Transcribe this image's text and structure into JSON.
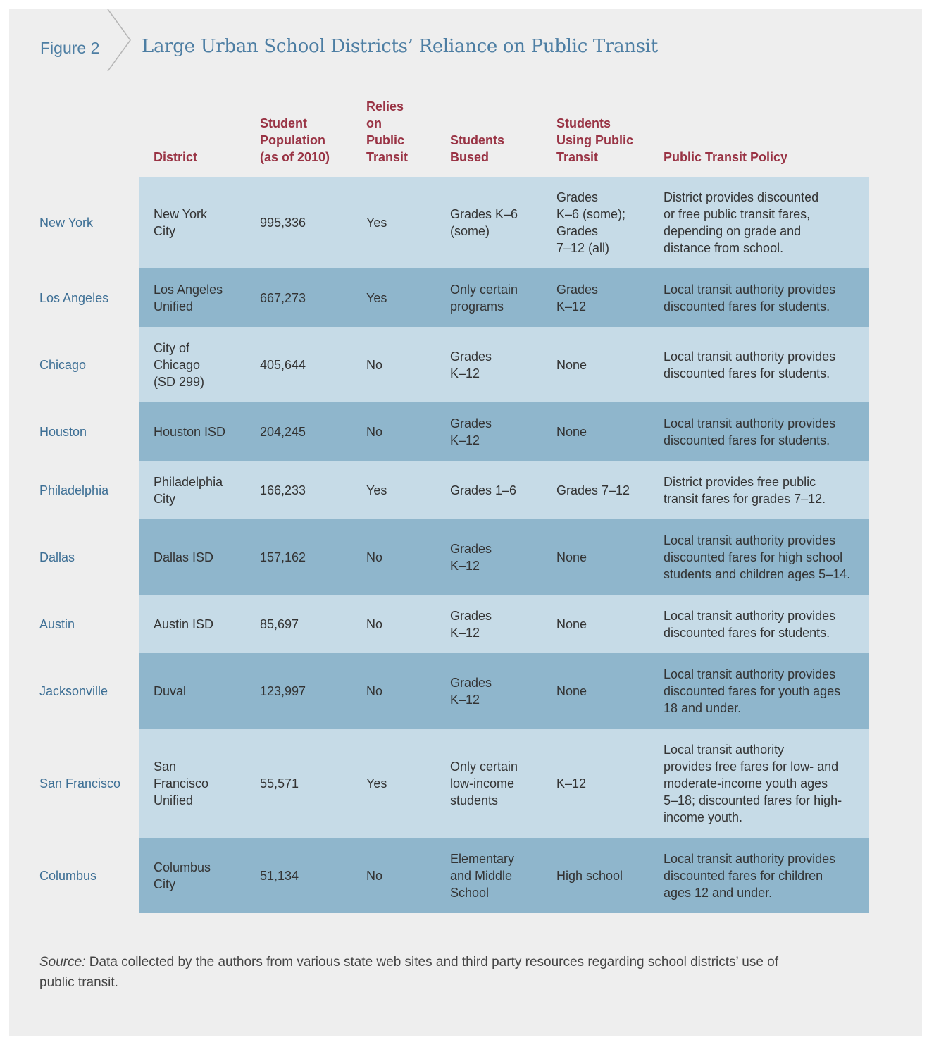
{
  "figure": {
    "label": "Figure 2",
    "title": "Large Urban School Districts’ Reliance on Public Transit"
  },
  "columns": {
    "district": "District",
    "population": "Student\nPopulation\n(as of 2010)",
    "relies": "Relies\non\nPublic\nTransit",
    "bused": "Students\nBused",
    "using": "Students\nUsing Public\nTransit",
    "policy": "Public Transit Policy"
  },
  "rows": [
    {
      "city": "New York",
      "district": "New York\nCity",
      "population": "995,336",
      "relies": "Yes",
      "bused": "Grades K–6\n(some)",
      "using": "Grades\nK–6 (some);\nGrades\n7–12 (all)",
      "policy": "District provides discounted\nor free public transit fares,\ndepending on grade and\ndistance from school."
    },
    {
      "city": "Los Angeles",
      "district": "Los Angeles\nUnified",
      "population": "667,273",
      "relies": "Yes",
      "bused": "Only certain\nprograms",
      "using": "Grades\nK–12",
      "policy": "Local transit authority provides\ndiscounted fares for students."
    },
    {
      "city": "Chicago",
      "district": "City of\nChicago\n(SD 299)",
      "population": "405,644",
      "relies": "No",
      "bused": "Grades\nK–12",
      "using": "None",
      "policy": "Local transit authority provides\ndiscounted fares for students."
    },
    {
      "city": "Houston",
      "district": "Houston ISD",
      "population": "204,245",
      "relies": "No",
      "bused": "Grades\nK–12",
      "using": "None",
      "policy": "Local transit authority provides\ndiscounted fares for students."
    },
    {
      "city": "Philadelphia",
      "district": "Philadelphia\nCity",
      "population": "166,233",
      "relies": "Yes",
      "bused": "Grades 1–6",
      "using": "Grades 7–12",
      "policy": "District provides free public\ntransit fares for grades 7–12."
    },
    {
      "city": "Dallas",
      "district": "Dallas ISD",
      "population": "157,162",
      "relies": "No",
      "bused": "Grades\nK–12",
      "using": "None",
      "policy": "Local transit authority provides\ndiscounted fares for high school\nstudents and children ages 5–14."
    },
    {
      "city": "Austin",
      "district": "Austin ISD",
      "population": "85,697",
      "relies": "No",
      "bused": "Grades\nK–12",
      "using": "None",
      "policy": "Local transit authority provides\ndiscounted fares for students."
    },
    {
      "city": "Jacksonville",
      "district": "Duval",
      "population": "123,997",
      "relies": "No",
      "bused": "Grades\nK–12",
      "using": "None",
      "policy": "Local transit authority provides\ndiscounted fares for youth ages\n18 and under."
    },
    {
      "city": "San Francisco",
      "district": "San\nFrancisco\nUnified",
      "population": "55,571",
      "relies": "Yes",
      "bused": "Only certain\nlow-income\nstudents",
      "using": "K–12",
      "policy": "Local transit authority\nprovides free fares for low- and\nmoderate-income youth ages\n5–18; discounted fares for high-\nincome youth."
    },
    {
      "city": "Columbus",
      "district": "Columbus\nCity",
      "population": "51,134",
      "relies": "No",
      "bused": "Elementary\nand Middle\nSchool",
      "using": "High school",
      "policy": "Local transit authority provides\ndiscounted fares for children\nages 12 and under."
    }
  ],
  "source": {
    "label": "Source:",
    "text": " Data collected by the authors from various state web sites and third party resources regarding school districts’ use of public transit."
  },
  "colors": {
    "light_band": "#c6dbe7",
    "dark_band": "#8fb6cc",
    "header_text": "#993344",
    "title_blue": "#4d7ea3"
  }
}
